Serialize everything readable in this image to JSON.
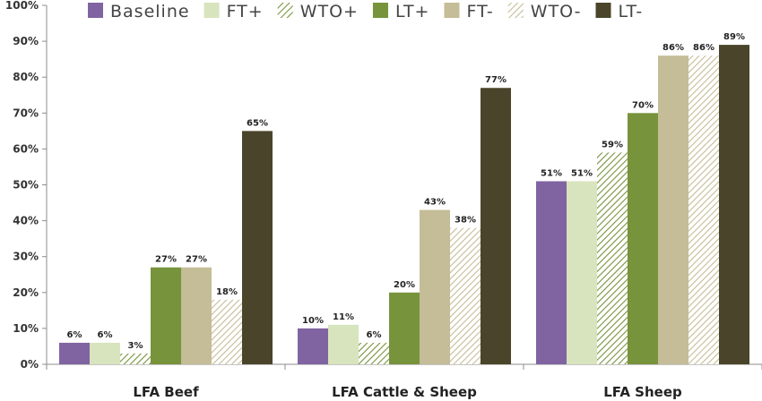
{
  "chart_data": {
    "type": "bar",
    "categories": [
      "LFA Beef",
      "LFA Cattle & Sheep",
      "LFA Sheep"
    ],
    "series": [
      {
        "name": "Baseline",
        "values": [
          6,
          10,
          51
        ],
        "labels": [
          "6%",
          "10%",
          "51%"
        ],
        "color": "#8064a2",
        "pattern": "solid"
      },
      {
        "name": "FT+",
        "values": [
          6,
          11,
          51
        ],
        "labels": [
          "6%",
          "11%",
          "51%"
        ],
        "color": "#d7e4bd",
        "pattern": "solid"
      },
      {
        "name": "WTO+",
        "values": [
          3,
          6,
          59
        ],
        "labels": [
          "3%",
          "6%",
          "59%"
        ],
        "color": "#77933c",
        "pattern": "hatch"
      },
      {
        "name": "LT+",
        "values": [
          27,
          20,
          70
        ],
        "labels": [
          "27%",
          "20%",
          "70%"
        ],
        "color": "#77933c",
        "pattern": "solid"
      },
      {
        "name": "FT-",
        "values": [
          27,
          43,
          86
        ],
        "labels": [
          "27%",
          "43%",
          "86%"
        ],
        "color": "#c4bd97",
        "pattern": "solid"
      },
      {
        "name": "WTO-",
        "values": [
          18,
          38,
          86
        ],
        "labels": [
          "18%",
          "38%",
          "86%"
        ],
        "color": "#c4bd97",
        "pattern": "hatch"
      },
      {
        "name": "LT-",
        "values": [
          65,
          77,
          89
        ],
        "labels": [
          "65%",
          "77%",
          "89%"
        ],
        "color": "#4a452a",
        "pattern": "solid"
      }
    ],
    "yticks": [
      "0%",
      "10%",
      "20%",
      "30%",
      "40%",
      "50%",
      "60%",
      "70%",
      "80%",
      "90%",
      "100%"
    ],
    "ylim": [
      0,
      100
    ],
    "grid": false,
    "legend_position": "top"
  }
}
